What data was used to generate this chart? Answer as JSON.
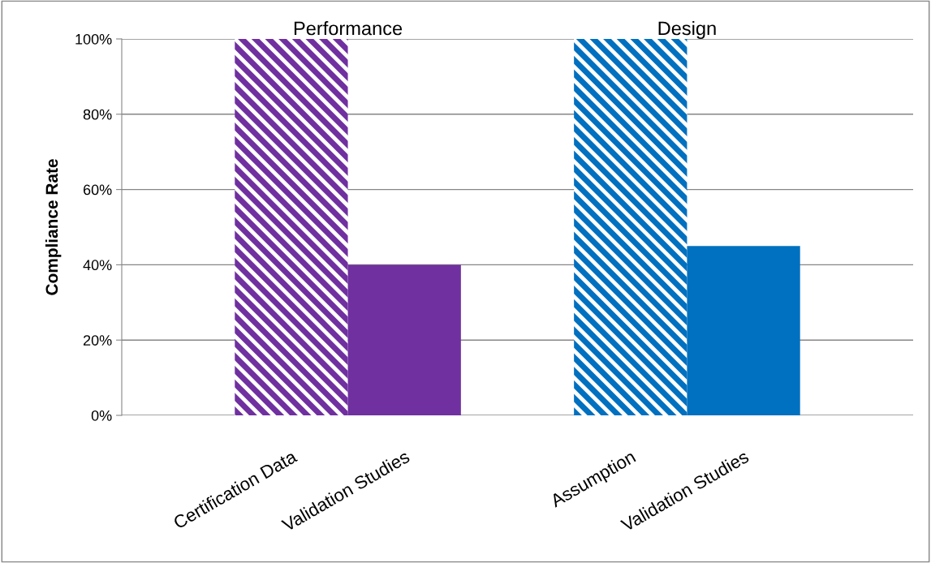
{
  "chart_data": {
    "type": "bar",
    "ylabel": "Compliance Rate",
    "categories": [
      null,
      "Certification Data",
      "Validation Studies",
      null,
      "Assumption",
      "Validation Studies",
      null
    ],
    "values": [
      null,
      100,
      40,
      null,
      100,
      45,
      null
    ],
    "colors": [
      null,
      "#7030a0",
      "#7030a0",
      null,
      "#0070c0",
      "#0070c0",
      null
    ],
    "annotations": [
      "Performance",
      "Design"
    ],
    "ylim": [
      0,
      100
    ],
    "yticks": [
      {
        "value": 0,
        "label": "0%"
      },
      {
        "value": 20,
        "label": "20%"
      },
      {
        "value": 40,
        "label": "40%"
      },
      {
        "value": 60,
        "label": "60%"
      },
      {
        "value": 80,
        "label": "80%"
      },
      {
        "value": 100,
        "label": "100%"
      }
    ],
    "grid": "y",
    "legend": false
  }
}
